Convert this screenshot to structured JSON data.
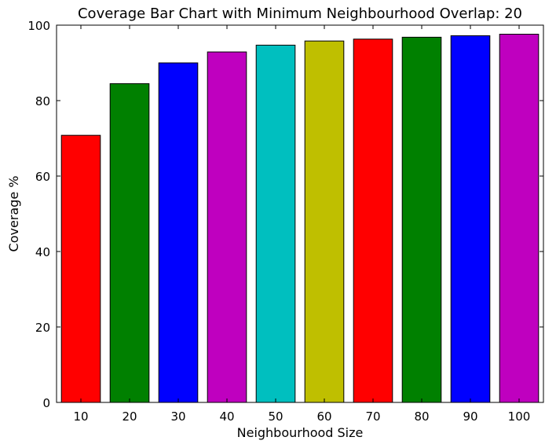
{
  "chart_data": {
    "type": "bar",
    "title": "Coverage Bar Chart with Minimum Neighbourhood Overlap: 20",
    "xlabel": "Neighbourhood Size",
    "ylabel": "Coverage %",
    "categories": [
      "10",
      "20",
      "30",
      "40",
      "50",
      "60",
      "70",
      "80",
      "90",
      "100"
    ],
    "values": [
      70.8,
      84.5,
      90.0,
      92.9,
      94.7,
      95.8,
      96.3,
      96.8,
      97.2,
      97.6
    ],
    "colors": [
      "#ff0000",
      "#008000",
      "#0000ff",
      "#bf00bf",
      "#00bfbf",
      "#bfbf00",
      "#ff0000",
      "#008000",
      "#0000ff",
      "#bf00bf"
    ],
    "ylim": [
      0,
      100
    ],
    "yticks": [
      "0",
      "20",
      "40",
      "60",
      "80",
      "100"
    ],
    "grid": false,
    "legend": "none"
  }
}
